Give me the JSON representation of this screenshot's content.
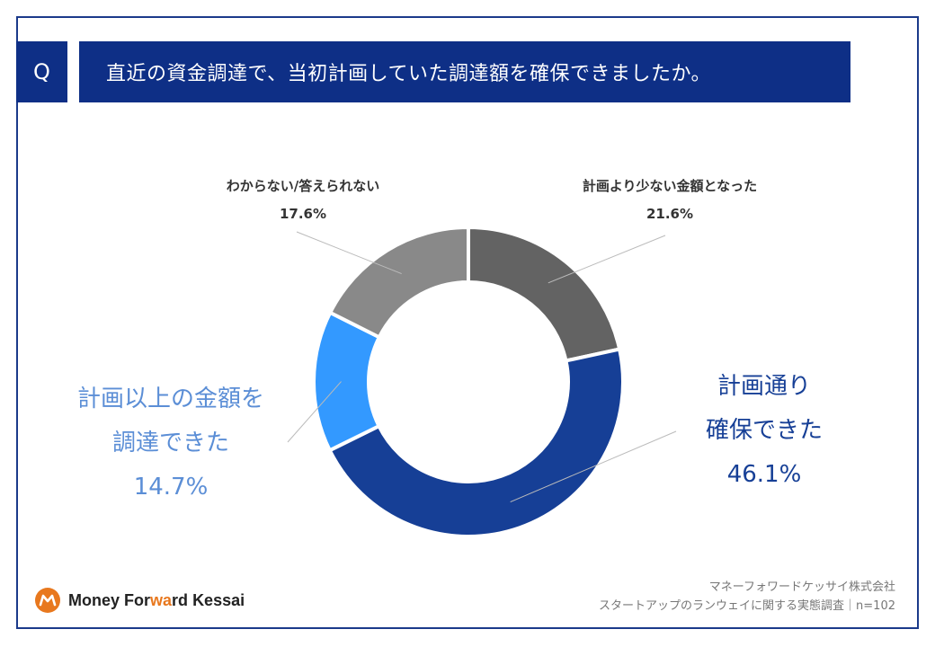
{
  "question": {
    "badge": "Q",
    "text": "直近の資金調達で、当初計画していた調達額を確保できましたか。"
  },
  "chart_data": {
    "type": "pie",
    "donut": true,
    "start": "12 o'clock, clockwise",
    "slices": [
      {
        "name": "計画より少ない金額となった",
        "value": 21.6,
        "pct": "21.6%",
        "color": "#636363"
      },
      {
        "name": "計画通り確保できた",
        "value": 46.1,
        "pct": "46.1%",
        "color": "#163f96"
      },
      {
        "name": "計画以上の金額を調達できた",
        "value": 14.7,
        "pct": "14.7%",
        "color": "#3399ff"
      },
      {
        "name": "わからない/答えられない",
        "value": 17.6,
        "pct": "17.6%",
        "color": "#898989"
      }
    ],
    "labels": {
      "less": {
        "line1": "計画より少ない金額となった",
        "line2": "21.6%"
      },
      "asplanned": {
        "line1": "計画通り",
        "line2": "確保できた",
        "line3": "46.1%"
      },
      "more": {
        "line1": "計画以上の金額を",
        "line2": "調達できた",
        "line3": "14.7%"
      },
      "unknown": {
        "line1": "わからない/答えられない",
        "line2": "17.6%"
      }
    }
  },
  "footer": {
    "logo_money": "Money",
    "logo_forward_1": "For",
    "logo_forward_accent": "wa",
    "logo_forward_2": "rd",
    "logo_kessai": "Kessai",
    "company": "マネーフォワードケッサイ株式会社",
    "survey": "スタートアップのランウェイに関する実態調査｜n=102"
  },
  "colors": {
    "header_bg": "#0e2f86",
    "asplanned_text": "#163f96",
    "more_text": "#5b8ed6",
    "logo_orange": "#e8781e"
  }
}
